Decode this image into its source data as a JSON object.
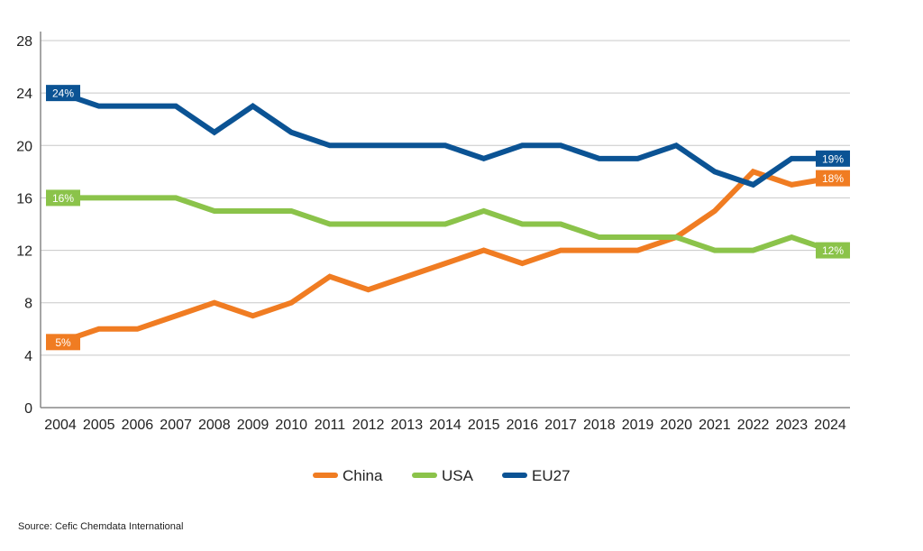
{
  "chart_data": {
    "type": "line",
    "title": "",
    "xlabel": "",
    "ylabel": "",
    "x": [
      2004,
      2005,
      2006,
      2007,
      2008,
      2009,
      2010,
      2011,
      2012,
      2013,
      2014,
      2015,
      2016,
      2017,
      2018,
      2019,
      2020,
      2021,
      2022,
      2023,
      2024
    ],
    "ylim": [
      0,
      28
    ],
    "yticks": [
      0,
      4,
      8,
      12,
      16,
      20,
      24,
      28
    ],
    "grid": true,
    "legend_position": "bottom",
    "series": [
      {
        "name": "China",
        "color": "#f07c22",
        "values": [
          5,
          6,
          6,
          7,
          8,
          7,
          8,
          10,
          9,
          10,
          11,
          12,
          11,
          12,
          12,
          12,
          13,
          15,
          18,
          17,
          17.5
        ],
        "start_label": "5%",
        "end_label": "18%"
      },
      {
        "name": "USA",
        "color": "#8bc34a",
        "values": [
          16,
          16,
          16,
          16,
          15,
          15,
          15,
          14,
          14,
          14,
          14,
          15,
          14,
          14,
          13,
          13,
          13,
          12,
          12,
          13,
          12
        ],
        "start_label": "16%",
        "end_label": "12%"
      },
      {
        "name": "EU27",
        "color": "#0b5394",
        "values": [
          24,
          23,
          23,
          23,
          21,
          23,
          21,
          20,
          20,
          20,
          20,
          19,
          20,
          20,
          19,
          19,
          20,
          18,
          17,
          19,
          19
        ],
        "start_label": "24%",
        "end_label": "19%"
      }
    ]
  },
  "source": "Source: Cefic Chemdata International"
}
